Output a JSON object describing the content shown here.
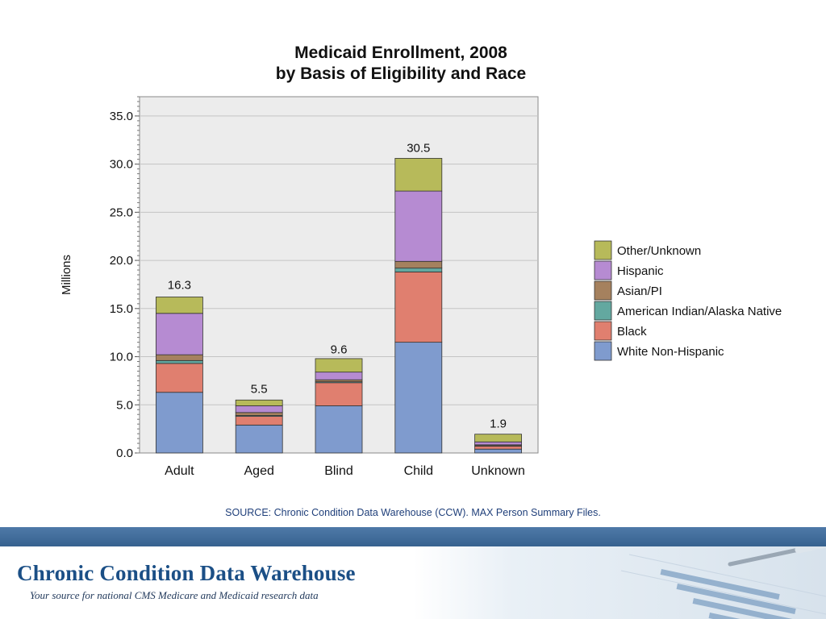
{
  "chart_data": {
    "type": "bar",
    "stacked": true,
    "title": [
      "Medicaid Enrollment, 2008",
      "by Basis of Eligibility and Race"
    ],
    "ylabel": "Millions",
    "xlabel": "",
    "ylim": [
      0,
      37
    ],
    "yticks": [
      0,
      5,
      10,
      15,
      20,
      25,
      30,
      35
    ],
    "ytick_labels": [
      "0.0",
      "5.0",
      "10.0",
      "15.0",
      "20.0",
      "25.0",
      "30.0",
      "35.0"
    ],
    "grid": true,
    "legend_position": "right",
    "categories": [
      "Adult",
      "Aged",
      "Blind",
      "Child",
      "Unknown"
    ],
    "totals": [
      16.3,
      5.5,
      9.6,
      30.5,
      1.9
    ],
    "total_labels": [
      "16.3",
      "5.5",
      "9.6",
      "30.5",
      "1.9"
    ],
    "series": [
      {
        "name": "White Non-Hispanic",
        "color": "#7f9bce",
        "values": [
          6.3,
          2.9,
          4.9,
          11.5,
          0.4
        ]
      },
      {
        "name": "Black",
        "color": "#e07f6f",
        "values": [
          3.0,
          0.9,
          2.4,
          7.3,
          0.3
        ]
      },
      {
        "name": "American Indian/Alaska Native",
        "color": "#63a8a0",
        "values": [
          0.3,
          0.1,
          0.1,
          0.4,
          0.05
        ]
      },
      {
        "name": "Asian/PI",
        "color": "#a5815e",
        "values": [
          0.6,
          0.3,
          0.2,
          0.7,
          0.1
        ]
      },
      {
        "name": "Hispanic",
        "color": "#b68bd2",
        "values": [
          4.3,
          0.7,
          0.8,
          7.3,
          0.3
        ]
      },
      {
        "name": "Other/Unknown",
        "color": "#b7ba5a",
        "values": [
          1.7,
          0.6,
          1.4,
          3.4,
          0.8
        ]
      }
    ]
  },
  "source_note": "SOURCE: Chronic Condition Data Warehouse (CCW).  MAX Person Summary Files.",
  "footer": {
    "title": "Chronic Condition Data Warehouse",
    "subtitle": "Your source for national CMS Medicare and Medicaid research data"
  },
  "colors": {
    "plot_background": "#ececec",
    "footer_band": "#3d6895",
    "brand_blue": "#1b4f86"
  }
}
